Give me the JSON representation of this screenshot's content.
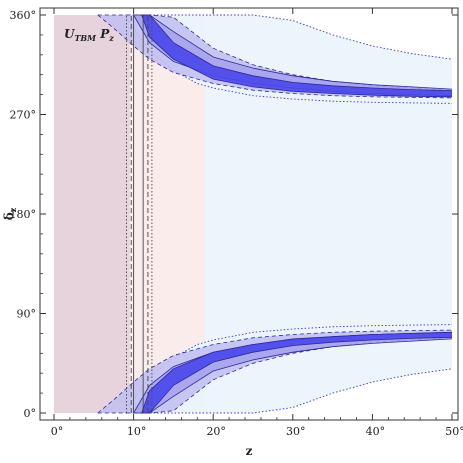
{
  "chart_data": {
    "type": "area",
    "title": "",
    "xlabel": "z",
    "ylabel": "δz",
    "xlim": [
      0,
      50
    ],
    "ylim": [
      0,
      360
    ],
    "degree_symbol": "°",
    "x_ticks": [
      0,
      10,
      20,
      30,
      40,
      50
    ],
    "y_ticks": [
      0,
      90,
      180,
      270,
      360
    ],
    "annotation": {
      "main": "U",
      "sub": "TBM",
      "main2": "P",
      "sub2": "z"
    },
    "colors": {
      "vertical_band": "#e7d3dc",
      "vertical_band_outer": "#fbecec",
      "outer_fill": "#eaf4fb",
      "region_light": "#c3c0ef",
      "region_mid": "#a6a1ee",
      "region_dark": "#4a47ea",
      "line_dark": "#2a2a9a",
      "line_dotted": "#3a3ad0"
    },
    "vertical_band": {
      "x_min": 0,
      "x_max": 19
    },
    "vertical_lines": [
      {
        "x": 9.1,
        "style": "dotted"
      },
      {
        "x": 9.7,
        "style": "dashed"
      },
      {
        "x": 10.0,
        "style": "solid"
      },
      {
        "x": 11.2,
        "style": "solid"
      },
      {
        "x": 11.8,
        "style": "dashed"
      },
      {
        "x": 12.3,
        "style": "dotted"
      }
    ],
    "bands": [
      {
        "name": "",
        "level": "outer",
        "z": [
          9,
          10,
          12,
          15,
          18,
          19,
          20,
          25,
          30,
          35,
          40,
          45,
          50
        ],
        "upper_low": [
          360,
          348,
          328,
          310,
          298,
          296,
          294,
          287,
          284,
          282,
          281,
          280.5,
          280
        ],
        "upper_high": [
          360,
          360,
          360,
          360,
          360,
          360,
          360,
          360,
          355,
          342,
          332,
          325,
          320
        ],
        "lower_low": [
          0,
          0,
          0,
          0,
          0,
          0,
          0,
          0,
          5,
          18,
          28,
          35,
          40
        ],
        "lower_high": [
          0,
          12,
          32,
          50,
          62,
          64,
          66,
          73,
          76,
          78,
          79,
          79.5,
          80
        ]
      },
      {
        "name": "",
        "level": "light",
        "z": [
          5.5,
          8,
          10,
          12,
          15,
          20,
          25,
          30,
          35,
          40,
          45,
          50
        ],
        "upper_low": [
          360,
          345,
          332,
          320,
          308,
          298,
          292,
          289,
          287,
          286,
          285.5,
          285
        ],
        "upper_high": [
          360,
          360,
          360,
          360,
          358,
          330,
          315,
          306,
          300,
          296,
          294,
          292
        ],
        "lower_low": [
          0,
          0,
          0,
          0,
          2,
          30,
          45,
          54,
          60,
          64,
          66,
          68
        ],
        "lower_high": [
          0,
          15,
          28,
          40,
          52,
          62,
          68,
          71,
          73,
          74,
          74.5,
          75
        ]
      },
      {
        "name": "",
        "level": "mid",
        "z": [
          10,
          12,
          15,
          20,
          25,
          30,
          35,
          40,
          45,
          50
        ],
        "upper_low": [
          360,
          335,
          318,
          305,
          298,
          294,
          291,
          289,
          288,
          287
        ],
        "upper_high": [
          360,
          360,
          345,
          322,
          312,
          305,
          300,
          297,
          295,
          293
        ],
        "lower_low": [
          0,
          0,
          15,
          38,
          48,
          55,
          60,
          63,
          65,
          67
        ],
        "lower_high": [
          0,
          25,
          42,
          55,
          62,
          66,
          69,
          71,
          72,
          73
        ]
      },
      {
        "name": "",
        "level": "dark",
        "z": [
          11,
          12,
          15,
          20,
          25,
          30,
          35,
          40,
          45,
          50
        ],
        "upper_low": [
          360,
          340,
          320,
          302,
          295,
          291,
          289,
          287.5,
          286.5,
          286
        ],
        "upper_high": [
          360,
          360,
          335,
          314,
          305,
          299,
          296,
          294,
          292.5,
          291.5
        ],
        "lower_low": [
          0,
          0,
          25,
          46,
          55,
          61,
          64,
          66,
          67.5,
          68.5
        ],
        "lower_high": [
          0,
          20,
          40,
          55,
          62,
          67,
          69,
          71,
          72,
          73
        ]
      }
    ]
  }
}
